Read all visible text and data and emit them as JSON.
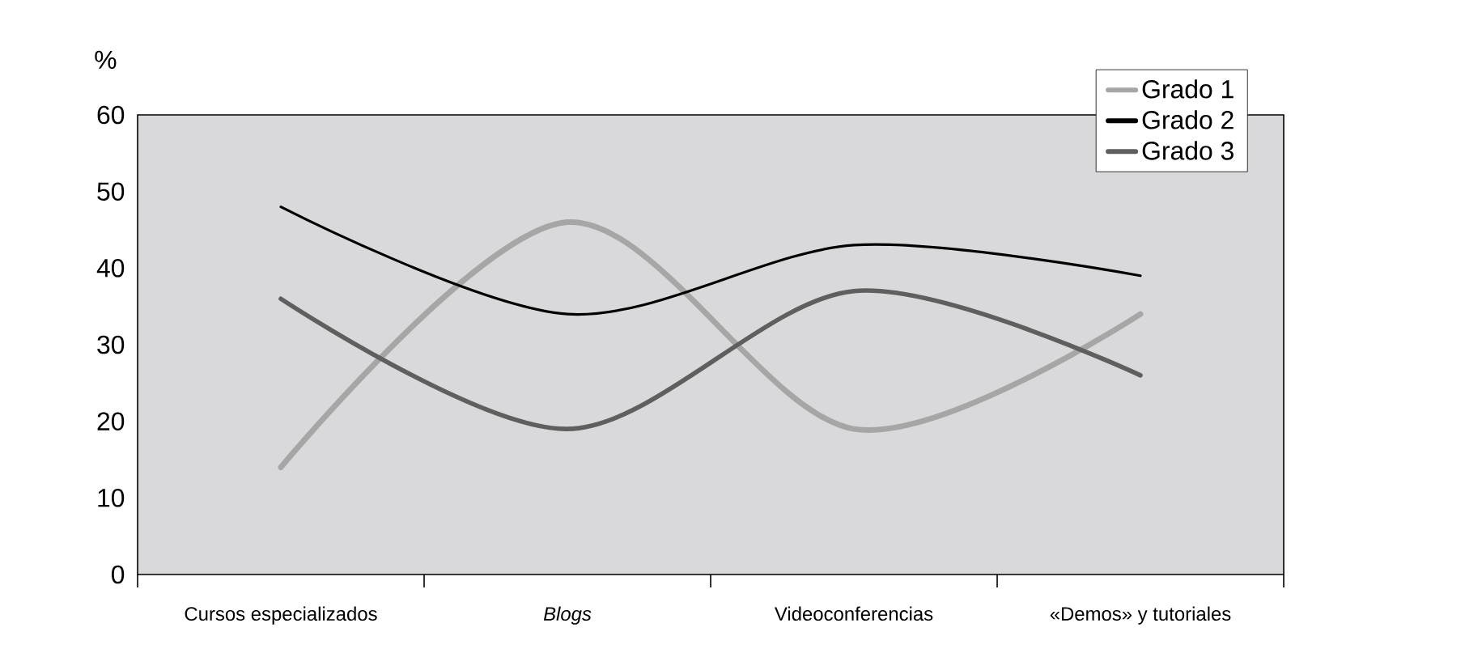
{
  "chart_data": {
    "type": "line",
    "ylabel": "%",
    "categories": [
      "Cursos especializados",
      "*Blogs*",
      "Videoconferencias",
      "«Demos» y tutoriales"
    ],
    "series": [
      {
        "name": "Grado 1",
        "color": "#a6a6a6",
        "values": [
          14,
          46,
          19,
          34
        ]
      },
      {
        "name": "Grado 2",
        "color": "#000000",
        "values": [
          48,
          34,
          43,
          39
        ]
      },
      {
        "name": "Grado 3",
        "color": "#5f5f5f",
        "values": [
          36,
          19,
          37,
          26
        ]
      }
    ],
    "ylim": [
      0,
      60
    ],
    "yticks": [
      0,
      10,
      20,
      30,
      40,
      50,
      60
    ],
    "grid": false,
    "legend": "top right",
    "marker": "none",
    "line_style": "solid"
  }
}
